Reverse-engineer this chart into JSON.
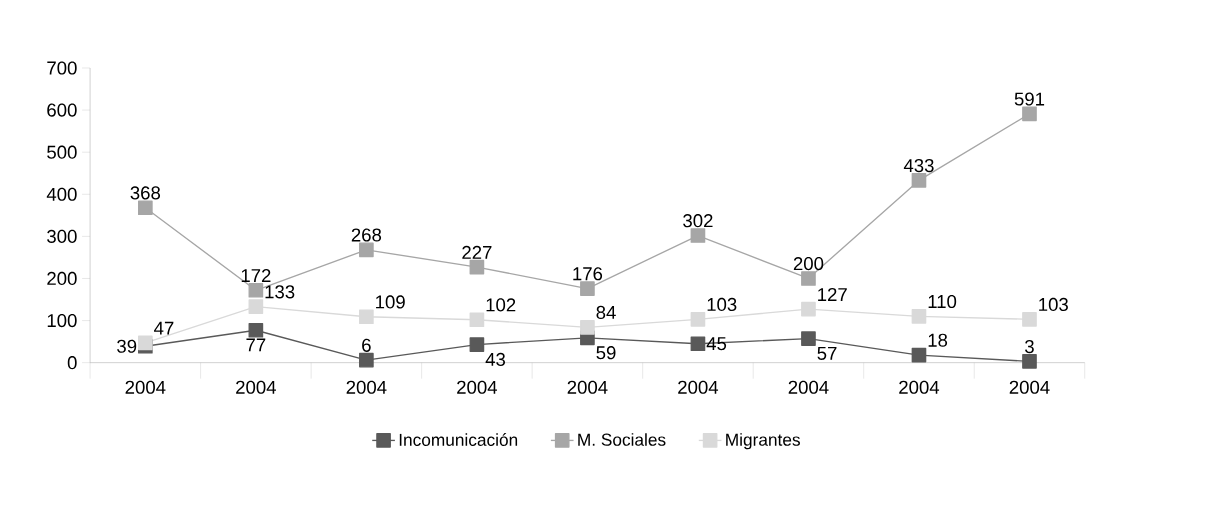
{
  "chart_data": {
    "type": "line",
    "categories": [
      "2004",
      "2004",
      "2004",
      "2004",
      "2004",
      "2004",
      "2004",
      "2004",
      "2004"
    ],
    "series": [
      {
        "name": "Incomunicación",
        "color": "#595959",
        "values": [
          39,
          77,
          6,
          43,
          59,
          45,
          57,
          18,
          3
        ]
      },
      {
        "name": "M. Sociales",
        "color": "#a6a6a6",
        "values": [
          368,
          172,
          268,
          227,
          176,
          302,
          200,
          433,
          591
        ]
      },
      {
        "name": "Migrantes",
        "color": "#d9d9d9",
        "values": [
          47,
          133,
          109,
          102,
          84,
          103,
          127,
          110,
          103
        ]
      }
    ],
    "ylim": [
      0,
      700
    ],
    "yticks": [
      0,
      100,
      200,
      300,
      400,
      500,
      600,
      700
    ],
    "data_labels": true,
    "legend": "bottom",
    "marker": "square",
    "line_style": "solid"
  }
}
